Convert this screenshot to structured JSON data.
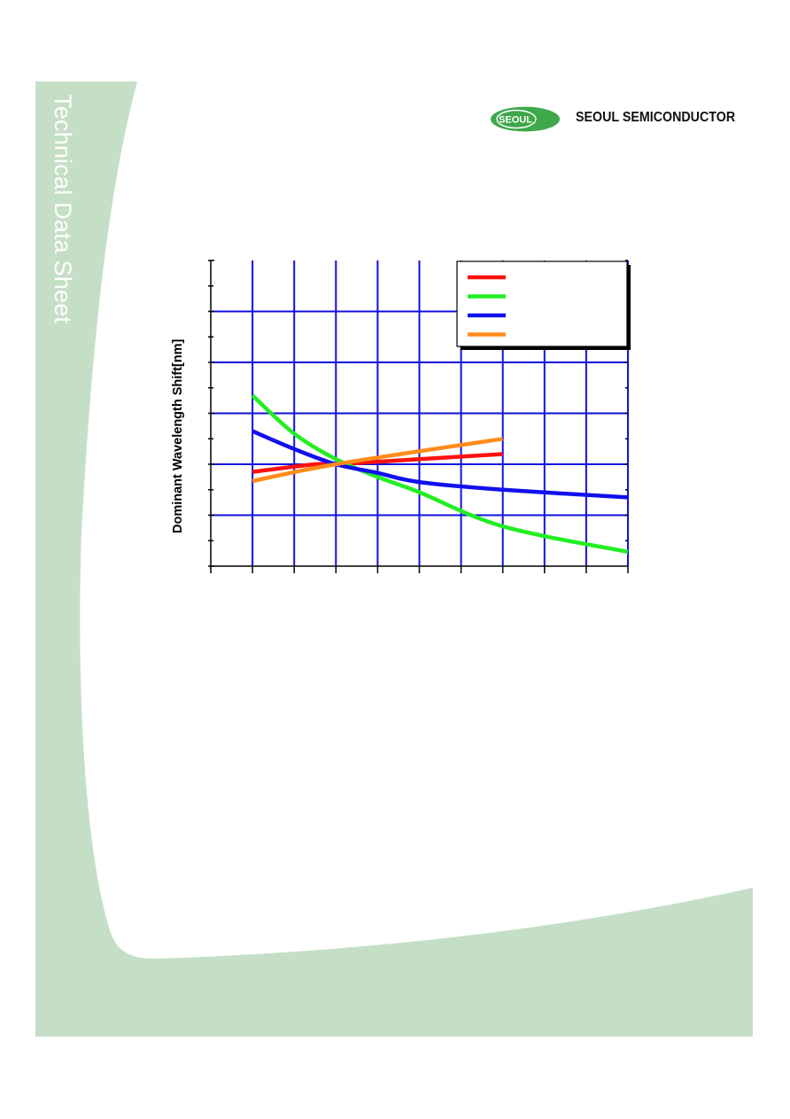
{
  "header": {
    "side_title": "Technical Data Sheet",
    "logo_badge": "SEOUL",
    "logo_name": "SEOUL SEMICONDUCTOR"
  },
  "colors": {
    "background_green": "#c5dfc6",
    "logo_green": "#3ea84a",
    "grid_blue": "#1010e0"
  },
  "chart_data": {
    "type": "line",
    "title": "",
    "xlabel": "",
    "ylabel": "Dominant Wavelength Shift[nm]",
    "xlim": [
      0,
      10
    ],
    "ylim": [
      0,
      6
    ],
    "grid": true,
    "legend_position": "top-right",
    "series": [
      {
        "color": "#ff1010",
        "x": [
          1,
          2.5,
          3,
          5,
          7
        ],
        "y": [
          1.85,
          2.0,
          2.0,
          2.1,
          2.2
        ]
      },
      {
        "color": "#22ee22",
        "x": [
          1,
          2,
          3,
          4,
          5,
          7,
          10
        ],
        "y": [
          3.35,
          2.6,
          2.1,
          1.75,
          1.45,
          0.78,
          0.28
        ]
      },
      {
        "color": "#1010ee",
        "x": [
          1,
          2,
          3,
          4,
          5,
          7,
          10
        ],
        "y": [
          2.65,
          2.3,
          2.0,
          1.83,
          1.65,
          1.5,
          1.35
        ]
      },
      {
        "color": "#ff8c1a",
        "x": [
          1,
          3,
          7
        ],
        "y": [
          1.67,
          2.0,
          2.5
        ]
      }
    ]
  }
}
